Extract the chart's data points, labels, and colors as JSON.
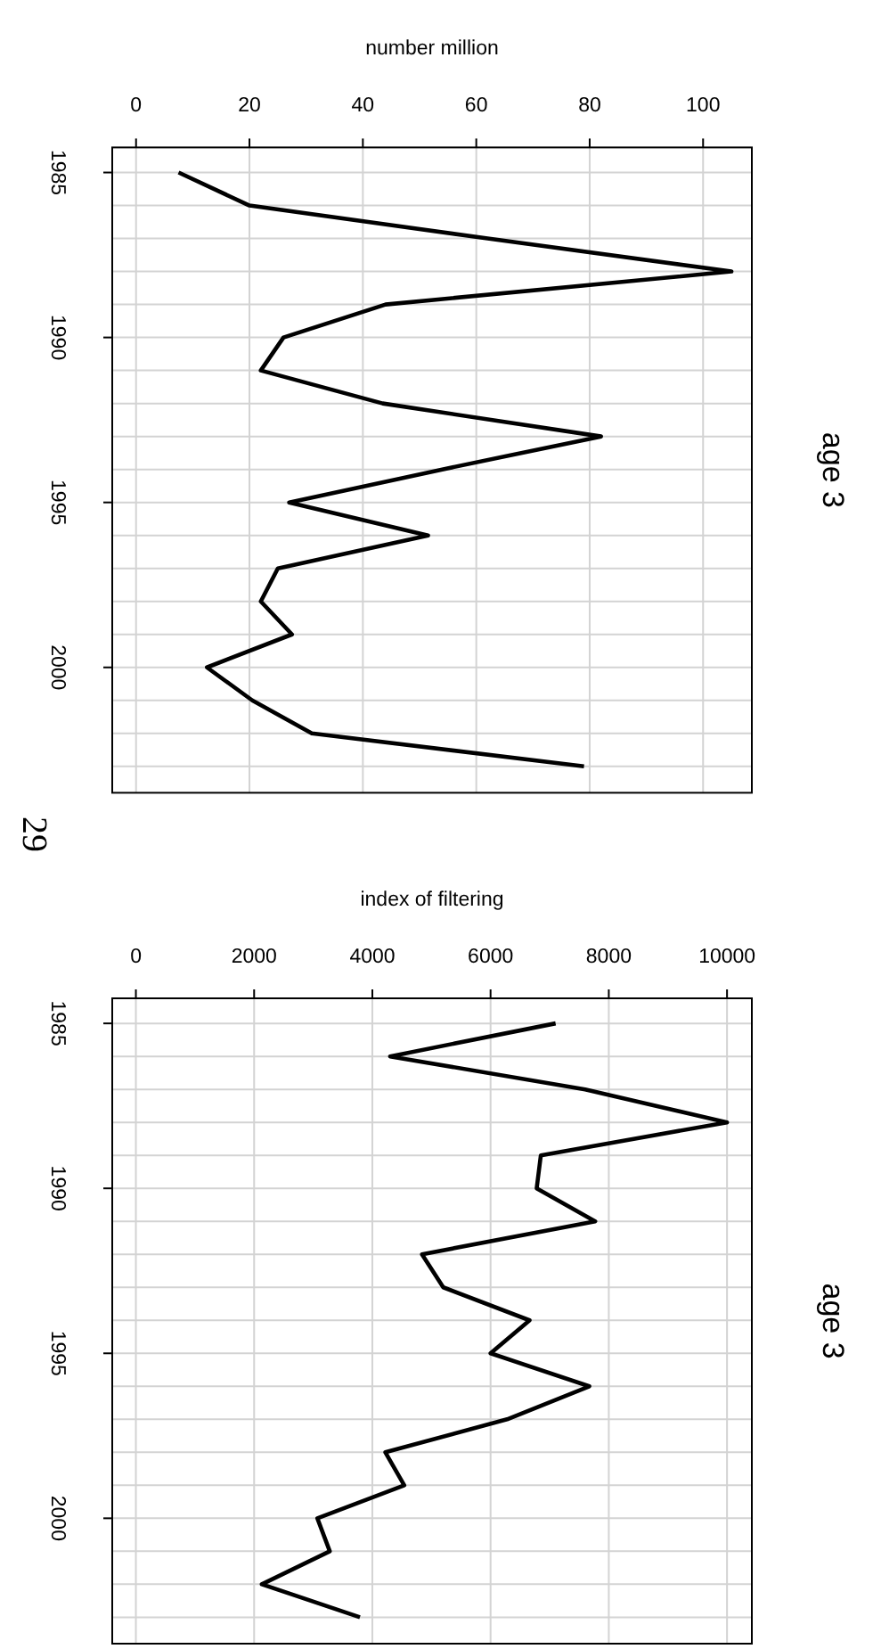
{
  "chart_data": [
    {
      "type": "line",
      "y2label": "age 3",
      "xlabel": "number million",
      "orientation": "horizontal",
      "annotations": [
        "29"
      ],
      "x": [
        1985,
        1986,
        1987,
        1988,
        1989,
        1990,
        1991,
        1992,
        1993,
        1994,
        1995,
        1996,
        1997,
        1998,
        1999,
        2000,
        2001,
        2002,
        2003
      ],
      "series": [
        {
          "color": "#000000",
          "values": [
            7.5,
            20,
            62,
            105,
            44,
            26,
            22,
            43.5,
            82,
            54,
            27,
            51.5,
            25,
            22,
            27.5,
            12.5,
            20.5,
            31,
            79
          ]
        }
      ],
      "xlim": [
        -4.2,
        108.6
      ],
      "xticks": [
        0,
        20,
        40,
        60,
        80,
        100
      ],
      "ylim": [
        2003.8,
        1984.24
      ],
      "yticks": [
        1985,
        {
          "value": 1986,
          "label": null
        },
        {
          "value": 1987,
          "label": null
        },
        {
          "value": 1988,
          "label": null
        },
        {
          "value": 1989,
          "label": null
        },
        1990,
        {
          "value": 1991,
          "label": null
        },
        {
          "value": 1992,
          "label": null
        },
        {
          "value": 1993,
          "label": null
        },
        {
          "value": 1994,
          "label": null
        },
        1995,
        {
          "value": 1996,
          "label": null
        },
        {
          "value": 1997,
          "label": null
        },
        {
          "value": 1998,
          "label": null
        },
        {
          "value": 1999,
          "label": null
        },
        2000,
        {
          "value": 2001,
          "label": null
        },
        {
          "value": 2002,
          "label": null
        },
        {
          "value": 2003,
          "label": null
        }
      ],
      "grid": true,
      "marker": "none",
      "line_style": "solid"
    },
    {
      "type": "line",
      "y2label": "age 3",
      "xlabel": "index of filtering",
      "orientation": "horizontal",
      "x": [
        1985,
        1986,
        1987,
        1988,
        1989,
        1990,
        1991,
        1992,
        1993,
        1994,
        1995,
        1996,
        1997,
        1998,
        1999,
        2000,
        2001,
        2002,
        2003
      ],
      "series": [
        {
          "color": "#000000",
          "values": [
            7100,
            4300,
            7600,
            10000,
            6850,
            6780,
            7770,
            4840,
            5200,
            6660,
            6000,
            7670,
            6280,
            4220,
            4540,
            3070,
            3280,
            2130,
            3790
          ]
        }
      ],
      "xlim": [
        -400,
        10420
      ],
      "xticks": [
        0,
        2000,
        4000,
        6000,
        8000,
        10000
      ],
      "ylim": [
        2003.8,
        1984.24
      ],
      "yticks": [
        1985,
        {
          "value": 1986,
          "label": null
        },
        {
          "value": 1987,
          "label": null
        },
        {
          "value": 1988,
          "label": null
        },
        {
          "value": 1989,
          "label": null
        },
        1990,
        {
          "value": 1991,
          "label": null
        },
        {
          "value": 1992,
          "label": null
        },
        {
          "value": 1993,
          "label": null
        },
        {
          "value": 1994,
          "label": null
        },
        1995,
        {
          "value": 1996,
          "label": null
        },
        {
          "value": 1997,
          "label": null
        },
        {
          "value": 1998,
          "label": null
        },
        {
          "value": 1999,
          "label": null
        },
        2000,
        {
          "value": 2001,
          "label": null
        },
        {
          "value": 2002,
          "label": null
        },
        {
          "value": 2003,
          "label": null
        }
      ],
      "grid": true,
      "marker": "none",
      "line_style": "solid"
    }
  ]
}
